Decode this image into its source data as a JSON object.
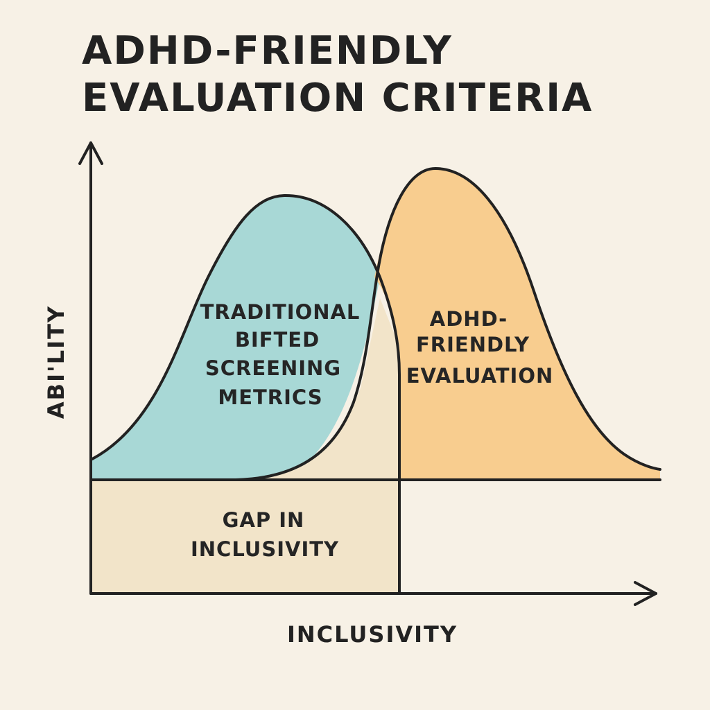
{
  "title": {
    "line1": "ADHD-FRIENDLY",
    "line2": "EVALUATION CRITERIA"
  },
  "axes": {
    "y_label": "ABI'LITY",
    "x_label": "INCLUSIVITY"
  },
  "regions": {
    "traditional": {
      "lines": [
        "TRADITIONAL",
        "BIFTED",
        "SCREENING",
        "METRICS"
      ],
      "color": "#a8d8d6"
    },
    "adhd_friendly": {
      "lines": [
        "ADHD-",
        "FRIENDLY",
        "EVALUATION"
      ],
      "color": "#f8cd8f"
    },
    "gap": {
      "lines": [
        "GAP IN",
        "INCLUSIVITY"
      ],
      "color": "#f2e4c9"
    }
  },
  "colors": {
    "background": "#f7f1e6",
    "ink": "#222222"
  }
}
